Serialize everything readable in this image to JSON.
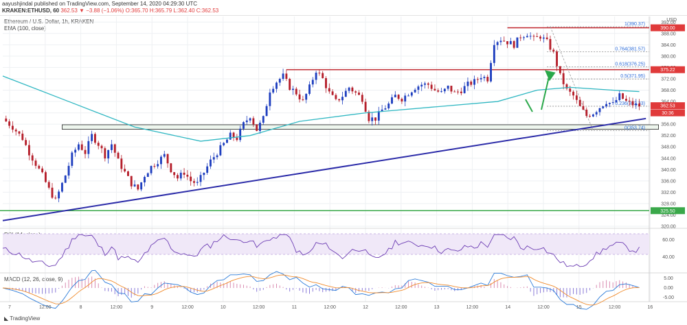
{
  "header": {
    "publisher": "aayushjindal published on TradingView.com, September 14, 2020 04:29:30 UTC",
    "symbol": "KRAKEN:ETHUSD, 60",
    "ohlc": "362.53 ▼ −3.88 (−1.06%) O:365.70 H:365.79 L:362.40 C:362.53"
  },
  "legend": {
    "title": "Ethereum / U.S. Dollar, 1h, KRAKEN",
    "ema": "EMA (100, close)",
    "rsi": "RSI (14, close)",
    "macd": "MACD (12, 26, close, 9)"
  },
  "footer": {
    "brand": "TradingView"
  },
  "axis": {
    "currency": "USD",
    "price_ticks": [
      "392.00",
      "388.00",
      "384.00",
      "380.00",
      "376.00",
      "372.00",
      "368.00",
      "364.00",
      "360.00",
      "356.00",
      "352.00",
      "348.00",
      "344.00",
      "340.00",
      "336.00",
      "332.00",
      "328.00",
      "324.00",
      "320.00"
    ],
    "rsi_ticks": [
      "60.00",
      "40.00"
    ],
    "macd_ticks": [
      "5.00",
      "0.00",
      "-5.00"
    ],
    "time_labels": [
      "7",
      "12:00",
      "8",
      "12:00",
      "9",
      "12:00",
      "10",
      "12:00",
      "11",
      "12:00",
      "12",
      "12:00",
      "13",
      "12:00",
      "14",
      "12:00",
      "15",
      "12:00",
      "16"
    ],
    "badges": [
      {
        "label": "390.00",
        "color": "#e03a3a"
      },
      {
        "label": "375.22",
        "color": "#e03a3a"
      },
      {
        "label": "362.53",
        "color": "#e03a3a"
      },
      {
        "label": "30:36",
        "color": "#e03a3a"
      },
      {
        "label": "325.50",
        "color": "#3aa84a"
      }
    ]
  },
  "fib_labels": [
    "1(390.37)",
    "0.764(381.57)",
    "0.618(376.25)",
    "0.5(371.95)",
    "0.236(362.33)",
    "0(353.74)"
  ],
  "chart_data": {
    "type": "candlestick",
    "title": "Ethereum / U.S. Dollar, 1h, KRAKEN",
    "ylim": [
      320,
      394
    ],
    "colors": {
      "up": "#1f3fbf",
      "down": "#b51e2a",
      "ema": "#2fb7c2",
      "trendline": "#2a2aa8",
      "resistance": "#c0282f",
      "support": "#3aa84a",
      "rsi": "#6a3ab2",
      "macd": "#2a7ad8",
      "signal": "#f08a2a"
    },
    "levels": {
      "resistance_top": 390.0,
      "resistance_mid": 375.22,
      "support": 325.5,
      "box": [
        354.2,
        355.8
      ]
    },
    "fib": [
      390.37,
      381.57,
      376.25,
      371.95,
      362.33,
      353.74
    ],
    "close_path": [
      [
        0,
        358
      ],
      [
        3,
        355
      ],
      [
        6,
        351
      ],
      [
        8,
        346
      ],
      [
        10,
        342
      ],
      [
        12,
        338
      ],
      [
        14,
        333
      ],
      [
        16,
        329
      ],
      [
        17,
        332
      ],
      [
        19,
        338
      ],
      [
        21,
        345
      ],
      [
        23,
        349
      ],
      [
        25,
        346
      ],
      [
        27,
        352
      ],
      [
        29,
        349
      ],
      [
        31,
        345
      ],
      [
        33,
        349
      ],
      [
        35,
        343
      ],
      [
        37,
        339
      ],
      [
        39,
        335
      ],
      [
        41,
        333
      ],
      [
        43,
        338
      ],
      [
        45,
        341
      ],
      [
        47,
        343
      ],
      [
        49,
        345
      ],
      [
        51,
        340
      ],
      [
        53,
        337
      ],
      [
        55,
        339
      ],
      [
        57,
        336
      ],
      [
        59,
        335
      ],
      [
        61,
        339
      ],
      [
        63,
        343
      ],
      [
        65,
        346
      ],
      [
        67,
        349
      ],
      [
        69,
        352
      ],
      [
        71,
        351
      ],
      [
        73,
        356
      ],
      [
        75,
        359
      ],
      [
        77,
        354
      ],
      [
        79,
        358
      ],
      [
        81,
        368
      ],
      [
        83,
        371
      ],
      [
        85,
        373
      ],
      [
        87,
        369
      ],
      [
        89,
        367
      ],
      [
        91,
        364
      ],
      [
        93,
        369
      ],
      [
        95,
        375
      ],
      [
        97,
        372
      ],
      [
        99,
        367
      ],
      [
        101,
        364
      ],
      [
        103,
        366
      ],
      [
        105,
        369
      ],
      [
        107,
        367
      ],
      [
        109,
        365
      ],
      [
        111,
        358
      ],
      [
        113,
        358
      ],
      [
        115,
        361
      ],
      [
        117,
        363
      ],
      [
        119,
        366
      ],
      [
        121,
        365
      ],
      [
        123,
        367
      ],
      [
        125,
        369
      ],
      [
        127,
        370
      ],
      [
        129,
        370
      ],
      [
        131,
        368
      ],
      [
        133,
        367
      ],
      [
        135,
        369
      ],
      [
        137,
        367
      ],
      [
        139,
        368
      ],
      [
        141,
        370
      ],
      [
        143,
        371
      ],
      [
        145,
        373
      ],
      [
        147,
        372
      ],
      [
        149,
        385
      ],
      [
        151,
        386
      ],
      [
        153,
        385
      ],
      [
        155,
        384
      ],
      [
        157,
        387
      ],
      [
        159,
        388
      ],
      [
        161,
        386
      ],
      [
        163,
        387
      ],
      [
        165,
        385
      ],
      [
        167,
        381
      ],
      [
        169,
        373
      ],
      [
        171,
        368
      ],
      [
        173,
        366
      ],
      [
        175,
        362
      ],
      [
        177,
        359
      ],
      [
        179,
        360
      ],
      [
        181,
        362
      ],
      [
        183,
        364
      ],
      [
        185,
        363
      ],
      [
        187,
        366
      ],
      [
        189,
        364
      ],
      [
        191,
        363
      ],
      [
        193,
        362.5
      ]
    ],
    "ema_path": [
      [
        0,
        373
      ],
      [
        20,
        364
      ],
      [
        40,
        355
      ],
      [
        60,
        350
      ],
      [
        75,
        352
      ],
      [
        90,
        357
      ],
      [
        110,
        360
      ],
      [
        130,
        362
      ],
      [
        150,
        364
      ],
      [
        162,
        368
      ],
      [
        172,
        369
      ],
      [
        185,
        368
      ],
      [
        193,
        367.5
      ]
    ],
    "trendline": [
      [
        0,
        322
      ],
      [
        195,
        358
      ]
    ],
    "forecast": "rebound toward 375.22"
  }
}
